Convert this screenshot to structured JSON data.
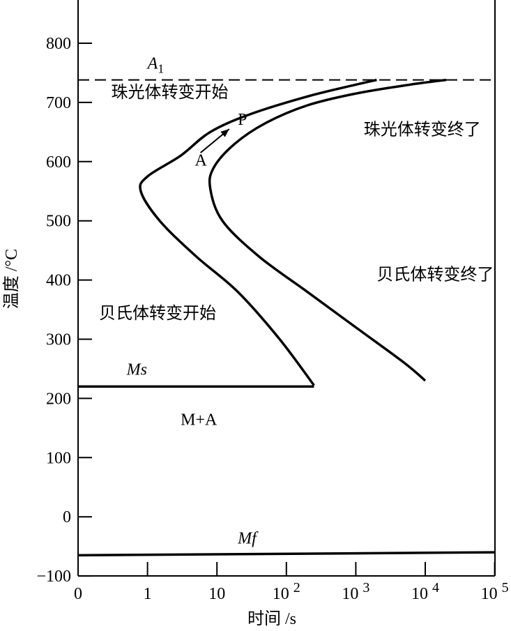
{
  "chart_data": {
    "type": "line",
    "xlabel": "时间 /s",
    "ylabel": "温度 /°C",
    "x_scale": "log (0 placed one decade left of 1)",
    "xlim": [
      0,
      100000
    ],
    "ylim": [
      -100,
      900
    ],
    "x_ticks": [
      {
        "value": 0,
        "base": "0",
        "exp": ""
      },
      {
        "value": 1,
        "base": "1",
        "exp": ""
      },
      {
        "value": 10,
        "base": "10",
        "exp": ""
      },
      {
        "value": 100,
        "base": "10",
        "exp": "2"
      },
      {
        "value": 1000,
        "base": "10",
        "exp": "3"
      },
      {
        "value": 10000,
        "base": "10",
        "exp": "4"
      },
      {
        "value": 100000,
        "base": "10",
        "exp": "5"
      }
    ],
    "y_ticks": [
      "800",
      "700",
      "600",
      "500",
      "400",
      "300",
      "200",
      "100",
      "0",
      "−100"
    ],
    "y_tick_values": [
      800,
      700,
      600,
      500,
      400,
      300,
      200,
      100,
      0,
      -100
    ],
    "grid": false,
    "series": [
      {
        "name": "A1",
        "style": "dashed",
        "points": [
          [
            0,
            738
          ],
          [
            100000,
            738
          ]
        ]
      },
      {
        "name": "Ms",
        "style": "solid",
        "points": [
          [
            0,
            220
          ],
          [
            250,
            220
          ]
        ]
      },
      {
        "name": "Mf",
        "style": "solid",
        "points": [
          [
            0,
            -65
          ],
          [
            100000,
            -60
          ]
        ]
      },
      {
        "name": "转变开始",
        "style": "solid",
        "points": [
          [
            2000,
            738
          ],
          [
            1000,
            730
          ],
          [
            200,
            710
          ],
          [
            30,
            680
          ],
          [
            8,
            650
          ],
          [
            3,
            610
          ],
          [
            1,
            575
          ],
          [
            0.8,
            550
          ],
          [
            1.5,
            500
          ],
          [
            5,
            440
          ],
          [
            20,
            380
          ],
          [
            80,
            300
          ],
          [
            250,
            222
          ]
        ]
      },
      {
        "name": "转变终了",
        "style": "solid",
        "points": [
          [
            20000,
            738
          ],
          [
            6000,
            730
          ],
          [
            1000,
            715
          ],
          [
            200,
            695
          ],
          [
            50,
            665
          ],
          [
            18,
            630
          ],
          [
            9,
            590
          ],
          [
            8,
            555
          ],
          [
            12,
            500
          ],
          [
            40,
            440
          ],
          [
            200,
            380
          ],
          [
            1000,
            320
          ],
          [
            5000,
            260
          ],
          [
            10000,
            230
          ]
        ]
      }
    ],
    "annotations": [
      {
        "text": "A",
        "sub": "1",
        "x": 1,
        "y": 757,
        "italic": true
      },
      {
        "text": "Ms",
        "x": 0.5,
        "y": 240,
        "italic": true
      },
      {
        "text": "Mf",
        "x": 20,
        "y": -45,
        "italic": true
      },
      {
        "text": "珠光体转变开始",
        "x": 0.3,
        "y": 708
      },
      {
        "text": "珠光体转变终了",
        "x": 1300,
        "y": 645
      },
      {
        "text": "贝氏体转变终了",
        "x": 2000,
        "y": 400
      },
      {
        "text": "贝氏体转变开始",
        "x": 0.2,
        "y": 335
      },
      {
        "text": "M+A",
        "x": 3,
        "y": 155
      },
      {
        "text": "A",
        "x": 4.8,
        "y": 593
      },
      {
        "text": "P",
        "x": 20,
        "y": 662
      }
    ],
    "arrow": {
      "from": [
        5.8,
        615
      ],
      "to": [
        15,
        655
      ]
    }
  }
}
